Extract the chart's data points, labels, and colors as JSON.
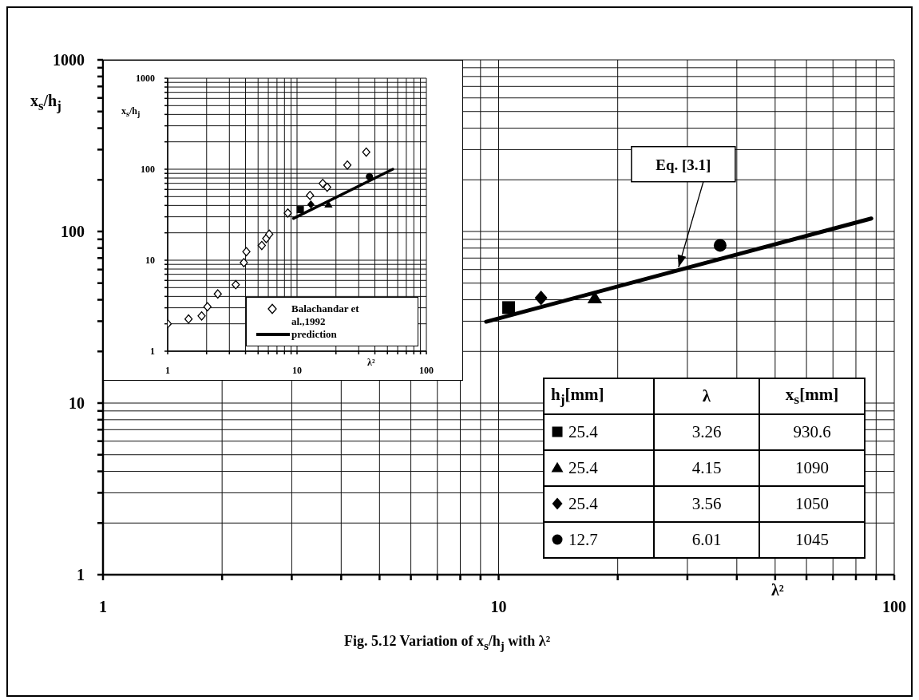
{
  "chart_data": [
    {
      "type": "scatter",
      "title": "Fig. 5.12 Variation of x$_{s}$/h$_{j}$ with λ²",
      "xlabel": "λ²",
      "ylabel": "x$_{s}$/h$_{j}$",
      "log": "xy",
      "grid": true,
      "xlim": [
        1,
        100
      ],
      "ylim": [
        1,
        1000
      ],
      "xticks": [
        1,
        {
          "value": 2,
          "label": null
        },
        {
          "value": 3,
          "label": null
        },
        {
          "value": 4,
          "label": null
        },
        {
          "value": 5,
          "label": null
        },
        {
          "value": 6,
          "label": null
        },
        {
          "value": 7,
          "label": null
        },
        {
          "value": 8,
          "label": null
        },
        {
          "value": 9,
          "label": null
        },
        10,
        {
          "value": 20,
          "label": null
        },
        {
          "value": 30,
          "label": null
        },
        {
          "value": 40,
          "label": null
        },
        {
          "value": 50,
          "label": null
        },
        {
          "value": 60,
          "label": null
        },
        {
          "value": 70,
          "label": null
        },
        {
          "value": 80,
          "label": null
        },
        {
          "value": 90,
          "label": null
        },
        100
      ],
      "yticks": [
        1,
        {
          "value": 2,
          "label": null
        },
        {
          "value": 3,
          "label": null
        },
        {
          "value": 4,
          "label": null
        },
        {
          "value": 5,
          "label": null
        },
        {
          "value": 6,
          "label": null
        },
        {
          "value": 7,
          "label": null
        },
        {
          "value": 8,
          "label": null
        },
        {
          "value": 9,
          "label": null
        },
        10,
        {
          "value": 20,
          "label": null
        },
        {
          "value": 30,
          "label": null
        },
        {
          "value": 40,
          "label": null
        },
        {
          "value": 50,
          "label": null
        },
        {
          "value": 60,
          "label": null
        },
        {
          "value": 70,
          "label": null
        },
        {
          "value": 80,
          "label": null
        },
        {
          "value": 90,
          "label": null
        },
        100,
        {
          "value": 200,
          "label": null
        },
        {
          "value": 300,
          "label": null
        },
        {
          "value": 400,
          "label": null
        },
        {
          "value": 500,
          "label": null
        },
        {
          "value": 600,
          "label": null
        },
        {
          "value": 700,
          "label": null
        },
        {
          "value": 800,
          "label": null
        },
        {
          "value": 900,
          "label": null
        },
        1000
      ],
      "annotations": [
        {
          "text": "Eq. [3.1]",
          "x": 28.5,
          "y": 60
        }
      ],
      "series": [
        {
          "type": "line",
          "color": "#000000",
          "x": [
            9.3,
            87.5
          ],
          "values": [
            29.8,
            119
          ]
        },
        {
          "marker": "square",
          "color": "#000000",
          "x": [
            10.6
          ],
          "values": [
            36
          ]
        },
        {
          "marker": "triangle",
          "color": "#000000",
          "x": [
            17.5
          ],
          "values": [
            41
          ]
        },
        {
          "marker": "diamond",
          "color": "#000000",
          "x": [
            12.8
          ],
          "values": [
            41
          ]
        },
        {
          "marker": "circle",
          "color": "#000000",
          "x": [
            36.3
          ],
          "values": [
            83
          ]
        }
      ]
    },
    {
      "type": "scatter",
      "xlabel": "λ²",
      "ylabel": "x$_{s}$/h$_{j}$",
      "log": "xy",
      "grid": true,
      "legend": "bottom right",
      "xlim": [
        1,
        100
      ],
      "ylim": [
        1,
        1000
      ],
      "xticks": [
        1,
        {
          "value": 2,
          "label": null
        },
        {
          "value": 3,
          "label": null
        },
        {
          "value": 4,
          "label": null
        },
        {
          "value": 5,
          "label": null
        },
        {
          "value": 6,
          "label": null
        },
        {
          "value": 7,
          "label": null
        },
        {
          "value": 8,
          "label": null
        },
        {
          "value": 9,
          "label": null
        },
        10,
        {
          "value": 20,
          "label": null
        },
        {
          "value": 30,
          "label": null
        },
        {
          "value": 40,
          "label": null
        },
        {
          "value": 50,
          "label": null
        },
        {
          "value": 60,
          "label": null
        },
        {
          "value": 70,
          "label": null
        },
        {
          "value": 80,
          "label": null
        },
        {
          "value": 90,
          "label": null
        },
        100
      ],
      "yticks": [
        1,
        {
          "value": 2,
          "label": null
        },
        {
          "value": 3,
          "label": null
        },
        {
          "value": 4,
          "label": null
        },
        {
          "value": 5,
          "label": null
        },
        {
          "value": 6,
          "label": null
        },
        {
          "value": 7,
          "label": null
        },
        {
          "value": 8,
          "label": null
        },
        {
          "value": 9,
          "label": null
        },
        10,
        {
          "value": 20,
          "label": null
        },
        {
          "value": 30,
          "label": null
        },
        {
          "value": 40,
          "label": null
        },
        {
          "value": 50,
          "label": null
        },
        {
          "value": 60,
          "label": null
        },
        {
          "value": 70,
          "label": null
        },
        {
          "value": 80,
          "label": null
        },
        {
          "value": 90,
          "label": null
        },
        100,
        {
          "value": 200,
          "label": null
        },
        {
          "value": 300,
          "label": null
        },
        {
          "value": 400,
          "label": null
        },
        {
          "value": 500,
          "label": null
        },
        {
          "value": 600,
          "label": null
        },
        {
          "value": 700,
          "label": null
        },
        {
          "value": 800,
          "label": null
        },
        {
          "value": 900,
          "label": null
        },
        1000
      ],
      "series": [
        {
          "name": "Balachandar et al.,1992",
          "marker": "diamond",
          "color": "#000000",
          "x": [
            1.0,
            1.45,
            1.83,
            2.03,
            2.44,
            3.36,
            3.88,
            4.06,
            5.34,
            5.78,
            6.1,
            8.49,
            12.6,
            15.8,
            17.1,
            24.5,
            34.3
          ],
          "values": [
            2.0,
            2.26,
            2.44,
            3.08,
            4.26,
            5.38,
            9.4,
            12.4,
            14.5,
            17.3,
            19.3,
            33,
            51.5,
            69.7,
            63.4,
            111,
            154
          ]
        },
        {
          "name": "prediction",
          "type": "line",
          "color": "#000000",
          "x": [
            9.4,
            55
          ],
          "values": [
            28.8,
            100
          ]
        },
        {
          "marker": "square",
          "color": "#000000",
          "x": [
            10.6
          ],
          "values": [
            36
          ]
        },
        {
          "marker": "triangle",
          "color": "#000000",
          "x": [
            17.5
          ],
          "values": [
            41
          ]
        },
        {
          "marker": "diamond",
          "color": "#000000",
          "x": [
            12.8
          ],
          "values": [
            41
          ]
        },
        {
          "marker": "circle",
          "color": "#000000",
          "x": [
            36.3
          ],
          "values": [
            83
          ]
        }
      ]
    },
    {
      "type": "other",
      "annotations": [
        "h$_{j}$[mm]",
        "λ",
        "x$_{s}$[mm]",
        "25.4",
        "3.26",
        "930.6",
        "25.4",
        "4.15",
        "1090",
        "25.4",
        "3.56",
        "1050",
        "12.7",
        "6.01",
        "1045"
      ]
    }
  ]
}
